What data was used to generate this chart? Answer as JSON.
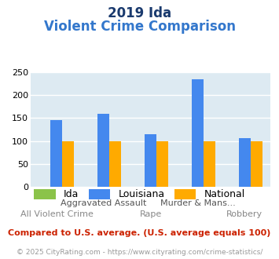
{
  "title_line1": "2019 Ida",
  "title_line2": "Violent Crime Comparison",
  "series": {
    "Ida": [
      0,
      0,
      0,
      0,
      0
    ],
    "Louisiana": [
      145,
      160,
      115,
      235,
      106
    ],
    "National": [
      100,
      100,
      100,
      100,
      100
    ]
  },
  "colors": {
    "Ida": "#8bc34a",
    "Louisiana": "#4488ee",
    "National": "#ffaa00"
  },
  "top_labels": [
    "",
    "Aggravated Assault",
    "",
    "Murder & Mans...",
    ""
  ],
  "bottom_labels": [
    "All Violent Crime",
    "",
    "Rape",
    "",
    "Robbery"
  ],
  "ylim": [
    0,
    250
  ],
  "yticks": [
    0,
    50,
    100,
    150,
    200,
    250
  ],
  "plot_bg_color": "#ddeaf2",
  "grid_color": "#ffffff",
  "title_color1": "#1a3a6e",
  "title_color2": "#3377cc",
  "footer_text": "Compared to U.S. average. (U.S. average equals 100)",
  "copyright_text": "© 2025 CityRating.com - https://www.cityrating.com/crime-statistics/",
  "footer_color": "#cc2200",
  "copyright_color": "#999999",
  "bar_width": 0.25,
  "title_fontsize1": 12,
  "title_fontsize2": 12,
  "tick_fontsize": 8,
  "xlabel_fontsize": 8,
  "legend_fontsize": 9,
  "footer_fontsize": 8,
  "copyright_fontsize": 6.5
}
